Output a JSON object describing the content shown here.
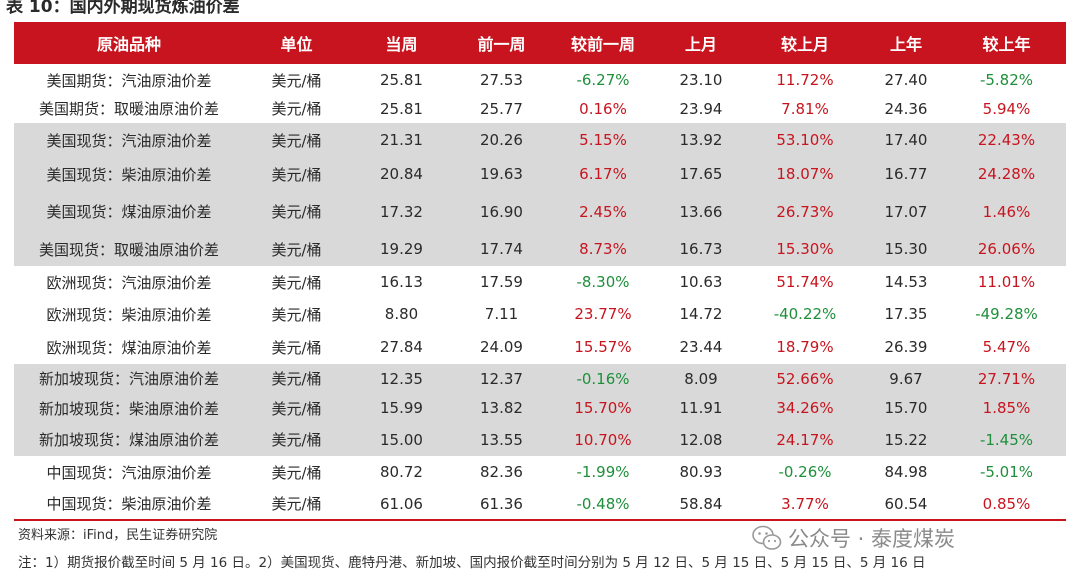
{
  "title": "表 10：国内外期现货炼油价差",
  "headers": [
    "原油品种",
    "单位",
    "当周",
    "前一周",
    "较前一周",
    "上月",
    "较上月",
    "上年",
    "较上年"
  ],
  "rows": [
    [
      "美国期货：汽油原油价差",
      "美元/桶",
      "25.81",
      "27.53",
      "-6.27%",
      "23.10",
      "11.72%",
      "27.40",
      "-5.82%"
    ],
    [
      "美国期货：取暖油原油价差",
      "美元/桶",
      "25.81",
      "25.77",
      "0.16%",
      "23.94",
      "7.81%",
      "24.36",
      "5.94%"
    ],
    [
      "美国现货：汽油原油价差",
      "美元/桶",
      "21.31",
      "20.26",
      "5.15%",
      "13.92",
      "53.10%",
      "17.40",
      "22.43%"
    ],
    [
      "美国现货：柴油原油价差",
      "美元/桶",
      "20.84",
      "19.63",
      "6.17%",
      "17.65",
      "18.07%",
      "16.77",
      "24.28%"
    ],
    [
      "美国现货：煤油原油价差",
      "美元/桶",
      "17.32",
      "16.90",
      "2.45%",
      "13.66",
      "26.73%",
      "17.07",
      "1.46%"
    ],
    [
      "美国现货：取暖油原油价差",
      "美元/桶",
      "19.29",
      "17.74",
      "8.73%",
      "16.73",
      "15.30%",
      "15.30",
      "26.06%"
    ],
    [
      "欧洲现货：汽油原油价差",
      "美元/桶",
      "16.13",
      "17.59",
      "-8.30%",
      "10.63",
      "51.74%",
      "14.53",
      "11.01%"
    ],
    [
      "欧洲现货：柴油原油价差",
      "美元/桶",
      "8.80",
      "7.11",
      "23.77%",
      "14.72",
      "-40.22%",
      "17.35",
      "-49.28%"
    ],
    [
      "欧洲现货：煤油原油价差",
      "美元/桶",
      "27.84",
      "24.09",
      "15.57%",
      "23.44",
      "18.79%",
      "26.39",
      "5.47%"
    ],
    [
      "新加坡现货：汽油原油价差",
      "美元/桶",
      "12.35",
      "12.37",
      "-0.16%",
      "8.09",
      "52.66%",
      "9.67",
      "27.71%"
    ],
    [
      "新加坡现货：柴油原油价差",
      "美元/桶",
      "15.99",
      "13.82",
      "15.70%",
      "11.91",
      "34.26%",
      "15.70",
      "1.85%"
    ],
    [
      "新加坡现货：煤油原油价差",
      "美元/桶",
      "15.00",
      "13.55",
      "10.70%",
      "12.08",
      "24.17%",
      "15.22",
      "-1.45%"
    ],
    [
      "中国现货：汽油原油价差",
      "美元/桶",
      "80.72",
      "82.36",
      "-1.99%",
      "80.93",
      "-0.26%",
      "84.98",
      "-5.01%"
    ],
    [
      "中国现货：柴油原油价差",
      "美元/桶",
      "61.06",
      "61.36",
      "-0.48%",
      "58.84",
      "3.77%",
      "60.54",
      "0.85%"
    ]
  ],
  "colors": {
    "header_bg": "#c8141e",
    "positive": "#c8141e",
    "negative": "#1e8f3a",
    "band": "#d9d9d9"
  },
  "source": "资料来源：iFind，民生证券研究院",
  "note": "注：1）期货报价截至时间 5 月 16 日。2）美国现货、鹿特丹港、新加坡、国内报价截至时间分别为 5 月 12 日、5 月 15 日、5 月 15 日、5 月 16 日",
  "watermark": {
    "icon": "wechat-icon",
    "text": "公众号 · 泰度煤炭"
  }
}
